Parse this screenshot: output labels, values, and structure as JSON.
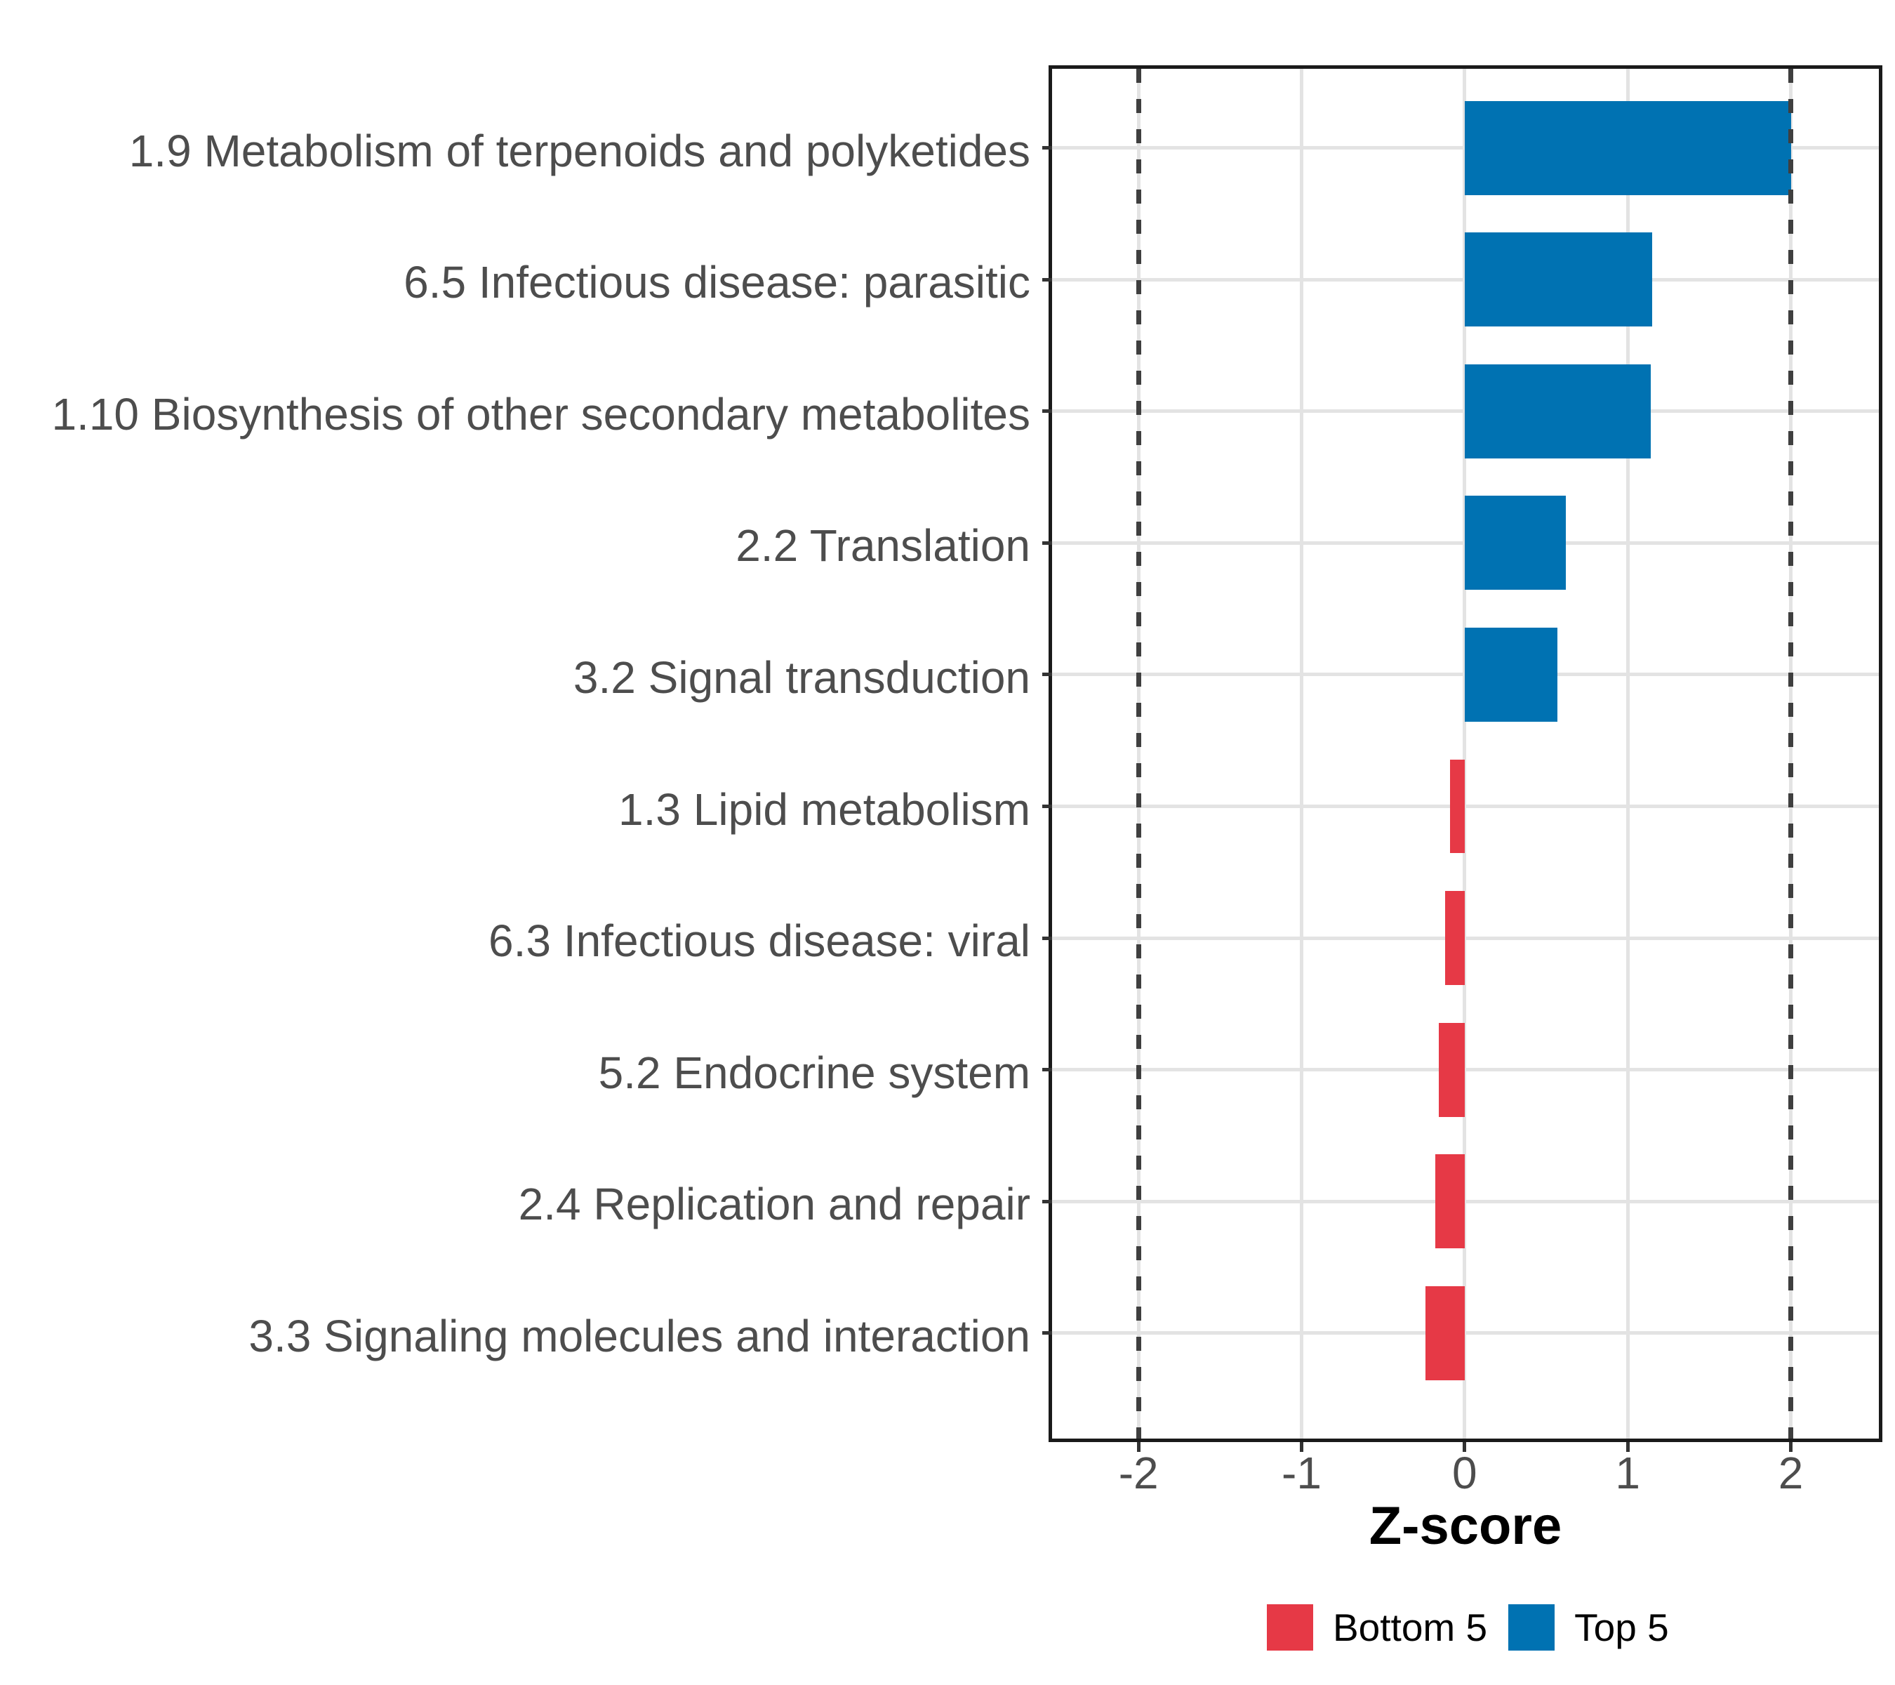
{
  "chart_data": {
    "type": "bar",
    "orientation": "horizontal",
    "title": "",
    "xlabel": "Z-score",
    "ylabel": "",
    "categories": [
      "1.9 Metabolism of terpenoids and polyketides",
      "6.5 Infectious disease: parasitic",
      "1.10 Biosynthesis of other secondary metabolites",
      "2.2 Translation",
      "3.2 Signal transduction",
      "1.3 Lipid metabolism",
      "6.3 Infectious disease: viral",
      "5.2 Endocrine system",
      "2.4 Replication and repair",
      "3.3 Signaling molecules and interaction"
    ],
    "values": [
      2.0,
      1.15,
      1.14,
      0.62,
      0.57,
      -0.09,
      -0.12,
      -0.16,
      -0.18,
      -0.24
    ],
    "groups": [
      "Top 5",
      "Top 5",
      "Top 5",
      "Top 5",
      "Top 5",
      "Bottom 5",
      "Bottom 5",
      "Bottom 5",
      "Bottom 5",
      "Bottom 5"
    ],
    "x_ticks": [
      -2,
      -1,
      0,
      1,
      2
    ],
    "x_tick_labels": [
      "-2",
      "-1",
      "0",
      "1",
      "2"
    ],
    "xlim": [
      -2.53,
      2.54
    ],
    "reference_lines": [
      -2,
      2
    ],
    "grid": "major",
    "legend_position": "bottom",
    "bar_width_fraction": 0.7
  },
  "legend": {
    "items": [
      {
        "label": "Bottom 5",
        "color": "#E63946"
      },
      {
        "label": "Top 5",
        "color": "#0072B2"
      }
    ]
  },
  "style": {
    "positive_color": "#0072B2",
    "negative_color": "#E63946",
    "grid_color": "#E3E3E3",
    "reference_line_color": "#3F3F3F",
    "panel_border_color": "#1A1A1A",
    "axis_text_color": "#4D4D4D",
    "tick_color": "#333333",
    "title_color": "#000000",
    "background": "#FFFFFF"
  }
}
